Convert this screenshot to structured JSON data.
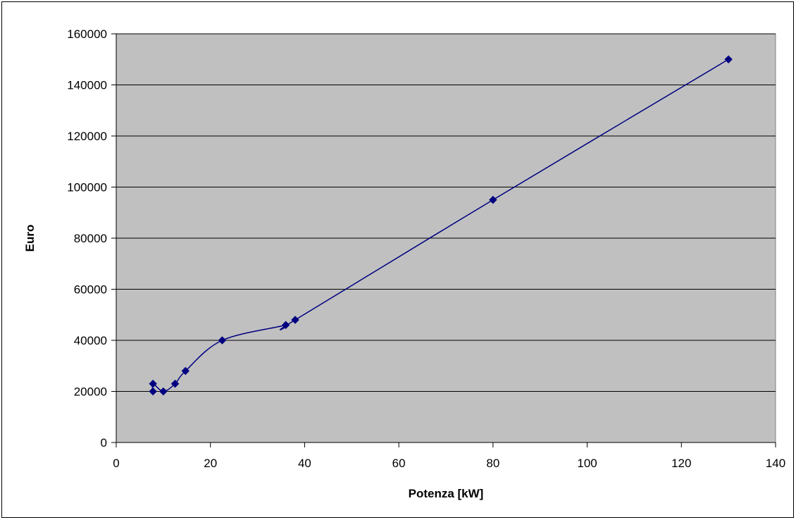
{
  "chart_data": {
    "type": "scatter",
    "title": "",
    "xlabel": "Potenza [kW]",
    "ylabel": "Euro",
    "xlim": [
      0,
      140
    ],
    "ylim": [
      0,
      160000
    ],
    "x_ticks": [
      "0",
      "20",
      "40",
      "60",
      "80",
      "100",
      "120",
      "140"
    ],
    "y_ticks": [
      "0",
      "20000",
      "40000",
      "60000",
      "80000",
      "100000",
      "120000",
      "140000",
      "160000"
    ],
    "grid": "horizontal",
    "legend": "none",
    "line_style": "smoothed",
    "series": [
      {
        "points": [
          {
            "x": 7.8,
            "y": 20000
          },
          {
            "x": 7.8,
            "y": 23000
          },
          {
            "x": 10,
            "y": 20000
          },
          {
            "x": 12.5,
            "y": 23000
          },
          {
            "x": 14.7,
            "y": 28000
          },
          {
            "x": 22.5,
            "y": 40000
          },
          {
            "x": 36,
            "y": 46000
          },
          {
            "x": 38,
            "y": 48000
          },
          {
            "x": 80,
            "y": 95000
          },
          {
            "x": 130,
            "y": 150000
          }
        ]
      }
    ],
    "colors": {
      "plot_background": "#c0c0c0",
      "series": "#000080",
      "gridline": "#000000"
    }
  }
}
